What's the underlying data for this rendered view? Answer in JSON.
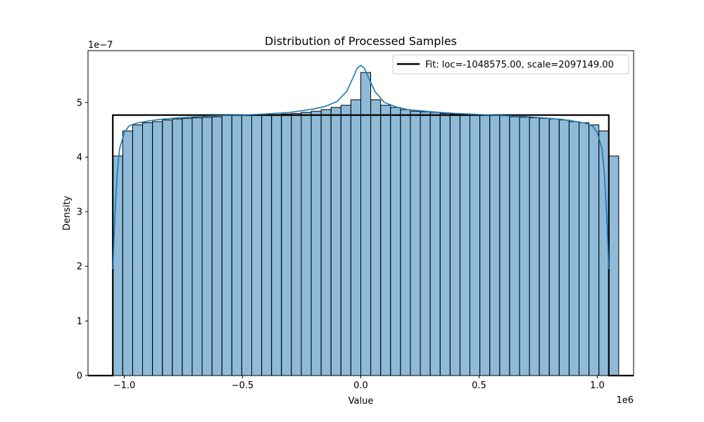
{
  "chart_data": {
    "type": "bar",
    "title": "Distribution of Processed Samples",
    "xlabel": "Value",
    "ylabel": "Density",
    "x_offset_label": "1e6",
    "y_offset_label": "1e−7",
    "xlim": [
      -1153433,
      1153433
    ],
    "ylim": [
      0,
      5.95e-07
    ],
    "x_ticks": [
      -1000000,
      -500000,
      0,
      500000,
      1000000
    ],
    "x_tick_labels": [
      "−1.0",
      "−0.5",
      "0.0",
      "0.5",
      "1.0"
    ],
    "y_ticks": [
      0,
      1e-07,
      2e-07,
      3e-07,
      4e-07,
      5e-07
    ],
    "y_tick_labels": [
      "0",
      "1",
      "2",
      "3",
      "4",
      "5"
    ],
    "grid": false,
    "legend_position": "upper right",
    "histogram": {
      "bin_start": -1048575,
      "bin_width": 41943,
      "values": [
        4.02e-07,
        4.48e-07,
        4.59e-07,
        4.63e-07,
        4.65e-07,
        4.68e-07,
        4.7e-07,
        4.71e-07,
        4.72e-07,
        4.73e-07,
        4.74e-07,
        4.76e-07,
        4.76e-07,
        4.77e-07,
        4.77e-07,
        4.78e-07,
        4.78e-07,
        4.79e-07,
        4.8e-07,
        4.82e-07,
        4.84e-07,
        4.87e-07,
        4.91e-07,
        4.95e-07,
        5.05e-07,
        5.55e-07,
        5.05e-07,
        4.95e-07,
        4.91e-07,
        4.87e-07,
        4.84e-07,
        4.83e-07,
        4.82e-07,
        4.8e-07,
        4.79e-07,
        4.78e-07,
        4.77e-07,
        4.77e-07,
        4.76e-07,
        4.76e-07,
        4.74e-07,
        4.73e-07,
        4.72e-07,
        4.71e-07,
        4.7e-07,
        4.68e-07,
        4.65e-07,
        4.63e-07,
        4.59e-07,
        4.48e-07,
        4.02e-07
      ],
      "color": "#1f77b4",
      "edge_color": "#000000"
    },
    "series": [
      {
        "name": "Fit: loc=-1048575.00, scale=2097149.00",
        "type": "line",
        "color": "#000000",
        "x": [
          -1153433,
          -1070000,
          -1048575,
          -1048575,
          1048574,
          1048574,
          1070000,
          1153433
        ],
        "y": [
          0,
          0,
          0,
          4.77e-07,
          4.77e-07,
          0,
          0,
          0
        ]
      },
      {
        "name": "",
        "type": "kde",
        "color": "#1f77b4",
        "x": [
          -1048575,
          -1040000,
          -1030000,
          -1020000,
          -1000000,
          -980000,
          -950000,
          -900000,
          -850000,
          -800000,
          -700000,
          -600000,
          -500000,
          -400000,
          -300000,
          -200000,
          -150000,
          -100000,
          -60000,
          -30000,
          -15000,
          0,
          15000,
          30000,
          60000,
          100000,
          150000,
          200000,
          300000,
          400000,
          500000,
          600000,
          700000,
          800000,
          850000,
          900000,
          950000,
          980000,
          1000000,
          1020000,
          1030000,
          1040000,
          1048575
        ],
        "y": [
          1.95e-07,
          2.9e-07,
          3.7e-07,
          4.15e-07,
          4.45e-07,
          4.57e-07,
          4.62e-07,
          4.66e-07,
          4.69e-07,
          4.71e-07,
          4.74e-07,
          4.76e-07,
          4.77e-07,
          4.79e-07,
          4.82e-07,
          4.88e-07,
          4.93e-07,
          5.02e-07,
          5.2e-07,
          5.48e-07,
          5.63e-07,
          5.68e-07,
          5.63e-07,
          5.48e-07,
          5.2e-07,
          5e-07,
          4.92e-07,
          4.87e-07,
          4.83e-07,
          4.8e-07,
          4.78e-07,
          4.76e-07,
          4.74e-07,
          4.71e-07,
          4.69e-07,
          4.66e-07,
          4.62e-07,
          4.57e-07,
          4.45e-07,
          4.15e-07,
          3.7e-07,
          2.9e-07,
          1.95e-07
        ]
      }
    ]
  }
}
